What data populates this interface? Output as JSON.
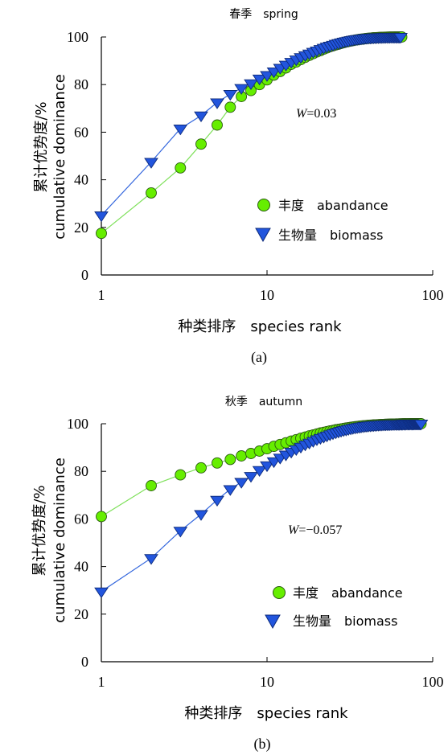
{
  "chart_data": [
    {
      "type": "line",
      "title": "春季　spring",
      "xlabel": "种类排序　species rank",
      "ylabel_zh": "累计优势度/%",
      "ylabel_en": "cumulative dominance",
      "xscale": "log",
      "xlim": [
        1,
        100
      ],
      "ylim": [
        0,
        100
      ],
      "xticks": [
        "1",
        "10",
        "100"
      ],
      "yticks": [
        "0",
        "20",
        "40",
        "60",
        "80",
        "100"
      ],
      "annotation": {
        "var": "W",
        "text": "=0.03"
      },
      "legend_position": "right",
      "caption": "(a)",
      "series": [
        {
          "name": "丰度　abandance",
          "marker": "circle",
          "color": "#66ee00",
          "line_color": "#7ee05a",
          "x": [
            1,
            2,
            3,
            4,
            5,
            6,
            7,
            8,
            9,
            10,
            11,
            12,
            13,
            14,
            15,
            16,
            17,
            18,
            19,
            20,
            21,
            22,
            23,
            24,
            25,
            26,
            27,
            28,
            29,
            30,
            31,
            32,
            33,
            34,
            35,
            36,
            37,
            38,
            39,
            40,
            41,
            42,
            43,
            44,
            45,
            46,
            47,
            48,
            49,
            50,
            51,
            52,
            53,
            54,
            55,
            56,
            57,
            58,
            59,
            60,
            61,
            62,
            63,
            64,
            65
          ],
          "y": [
            17.5,
            34.5,
            45,
            55,
            63,
            70.5,
            75,
            77.5,
            80,
            82,
            84,
            85.5,
            87,
            88.5,
            89.5,
            90.5,
            91.5,
            92.3,
            93,
            93.7,
            94.3,
            94.9,
            95.4,
            95.9,
            96.3,
            96.7,
            97,
            97.3,
            97.6,
            97.9,
            98.1,
            98.3,
            98.5,
            98.7,
            98.85,
            99,
            99.1,
            99.2,
            99.3,
            99.4,
            99.47,
            99.54,
            99.6,
            99.65,
            99.7,
            99.74,
            99.78,
            99.81,
            99.84,
            99.87,
            99.89,
            99.91,
            99.93,
            99.94,
            99.95,
            99.96,
            99.97,
            99.98,
            99.985,
            99.99,
            99.993,
            99.996,
            99.998,
            99.999,
            100
          ]
        },
        {
          "name": "生物量　biomass",
          "marker": "triangle-down",
          "color": "#2255dd",
          "line_color": "#3366dd",
          "x": [
            1,
            2,
            3,
            4,
            5,
            6,
            7,
            8,
            9,
            10,
            11,
            12,
            13,
            14,
            15,
            16,
            17,
            18,
            19,
            20,
            21,
            22,
            23,
            24,
            25,
            26,
            27,
            28,
            29,
            30,
            31,
            32,
            33,
            34,
            35,
            36,
            37,
            38,
            39,
            40,
            41,
            42,
            43,
            44,
            45,
            46,
            47,
            48,
            49,
            50,
            51,
            52,
            53,
            54,
            55,
            56,
            57,
            58,
            59,
            60,
            61,
            62,
            63,
            64
          ],
          "y": [
            25,
            47.5,
            61.5,
            67,
            72.5,
            76,
            78.5,
            80.5,
            82.5,
            84,
            85.5,
            87,
            88.3,
            89.5,
            90.5,
            91.5,
            92.3,
            93,
            93.7,
            94.3,
            94.9,
            95.4,
            95.9,
            96.3,
            96.7,
            97.1,
            97.4,
            97.7,
            98,
            98.2,
            98.4,
            98.6,
            98.8,
            98.95,
            99.1,
            99.2,
            99.3,
            99.4,
            99.48,
            99.55,
            99.62,
            99.68,
            99.73,
            99.77,
            99.81,
            99.84,
            99.87,
            99.89,
            99.91,
            99.93,
            99.94,
            99.95,
            99.96,
            99.97,
            99.98,
            99.985,
            99.99,
            99.993,
            99.995,
            99.997,
            99.998,
            99.999,
            100,
            100
          ]
        }
      ]
    },
    {
      "type": "line",
      "title": "秋季　autumn",
      "xlabel": "种类排序　species rank",
      "ylabel_zh": "累计优势度/%",
      "ylabel_en": "cumulative dominance",
      "xscale": "log",
      "xlim": [
        1,
        100
      ],
      "ylim": [
        0,
        100
      ],
      "xticks": [
        "1",
        "10",
        "100"
      ],
      "yticks": [
        "0",
        "20",
        "40",
        "60",
        "80",
        "100"
      ],
      "annotation": {
        "var": "W",
        "text": "=−0.057"
      },
      "legend_position": "bottom-right",
      "caption": "(b)",
      "series": [
        {
          "name": "丰度　abandance",
          "marker": "circle",
          "color": "#66ee00",
          "line_color": "#7ee05a",
          "x": [
            1,
            2,
            3,
            4,
            5,
            6,
            7,
            8,
            9,
            10,
            11,
            12,
            13,
            14,
            15,
            16,
            17,
            18,
            19,
            20,
            21,
            22,
            23,
            24,
            25,
            26,
            27,
            28,
            29,
            30,
            31,
            32,
            33,
            34,
            35,
            36,
            37,
            38,
            39,
            40,
            41,
            42,
            43,
            44,
            45,
            46,
            47,
            48,
            49,
            50,
            51,
            52,
            53,
            54,
            55,
            56,
            57,
            58,
            59,
            60,
            61,
            62,
            63,
            64,
            65,
            66,
            67,
            68,
            69,
            70,
            71,
            72,
            73,
            74,
            75,
            76,
            77,
            78,
            79,
            80,
            81,
            82,
            83,
            84,
            85
          ],
          "y": [
            61,
            74,
            78.5,
            81.5,
            83.5,
            85,
            86.5,
            87.5,
            88.5,
            89.5,
            90.5,
            91.3,
            92,
            92.7,
            93.3,
            93.9,
            94.4,
            94.9,
            95.3,
            95.7,
            96.1,
            96.4,
            96.7,
            97,
            97.2,
            97.45,
            97.65,
            97.85,
            98.05,
            98.2,
            98.35,
            98.5,
            98.63,
            98.75,
            98.86,
            98.96,
            99.05,
            99.13,
            99.2,
            99.27,
            99.33,
            99.39,
            99.44,
            99.49,
            99.53,
            99.57,
            99.61,
            99.64,
            99.67,
            99.7,
            99.73,
            99.75,
            99.77,
            99.79,
            99.81,
            99.83,
            99.85,
            99.87,
            99.88,
            99.89,
            99.9,
            99.91,
            99.92,
            99.93,
            99.94,
            99.95,
            99.955,
            99.96,
            99.965,
            99.97,
            99.975,
            99.98,
            99.984,
            99.987,
            99.99,
            99.992,
            99.994,
            99.995,
            99.996,
            99.997,
            99.998,
            99.999,
            99.9995,
            99.9998,
            100
          ]
        },
        {
          "name": "生物量　biomass",
          "marker": "triangle-down",
          "color": "#2255dd",
          "line_color": "#3366dd",
          "x": [
            1,
            2,
            3,
            4,
            5,
            6,
            7,
            8,
            9,
            10,
            11,
            12,
            13,
            14,
            15,
            16,
            17,
            18,
            19,
            20,
            21,
            22,
            23,
            24,
            25,
            26,
            27,
            28,
            29,
            30,
            31,
            32,
            33,
            34,
            35,
            36,
            37,
            38,
            39,
            40,
            41,
            42,
            43,
            44,
            45,
            46,
            47,
            48,
            49,
            50,
            51,
            52,
            53,
            54,
            55,
            56,
            57,
            58,
            59,
            60,
            61,
            62,
            63,
            64,
            65,
            66,
            67,
            68,
            69,
            70,
            71,
            72,
            73,
            74,
            75,
            76,
            77,
            78,
            79,
            80,
            81,
            82,
            83,
            84,
            85
          ],
          "y": [
            29.5,
            43.5,
            55,
            62,
            68,
            72.5,
            75.5,
            78,
            80.5,
            82.5,
            84.2,
            85.7,
            87,
            88.2,
            89.3,
            90.3,
            91.2,
            92,
            92.7,
            93.4,
            94,
            94.5,
            95,
            95.5,
            95.9,
            96.3,
            96.65,
            96.95,
            97.25,
            97.5,
            97.75,
            97.95,
            98.15,
            98.32,
            98.48,
            98.62,
            98.75,
            98.87,
            98.97,
            99.06,
            99.15,
            99.23,
            99.3,
            99.36,
            99.42,
            99.47,
            99.52,
            99.56,
            99.6,
            99.63,
            99.66,
            99.69,
            99.72,
            99.74,
            99.76,
            99.78,
            99.8,
            99.82,
            99.84,
            99.85,
            99.86,
            99.87,
            99.88,
            99.89,
            99.9,
            99.91,
            99.92,
            99.93,
            99.94,
            99.95,
            99.955,
            99.96,
            99.965,
            99.97,
            99.975,
            99.98,
            99.985,
            99.99,
            99.992,
            99.994,
            99.996,
            99.998,
            99.999,
            99.9995,
            100
          ]
        }
      ]
    }
  ]
}
